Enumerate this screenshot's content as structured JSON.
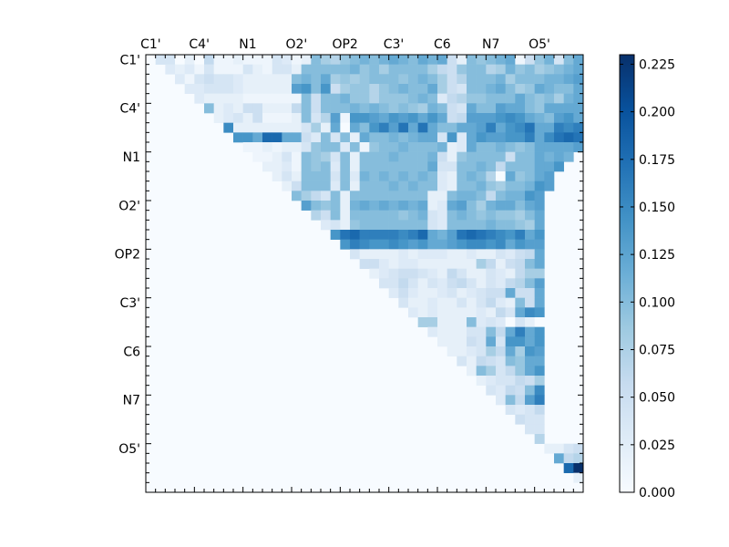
{
  "chart_data": {
    "type": "heatmap",
    "title": "",
    "xlabel": "",
    "ylabel": "",
    "x_tick_labels": [
      "C1'",
      "C4'",
      "N1",
      "O2'",
      "OP2",
      "C3'",
      "C6",
      "N7",
      "O5'"
    ],
    "y_tick_labels": [
      "C1'",
      "C4'",
      "N1",
      "O2'",
      "OP2",
      "C3'",
      "C6",
      "N7",
      "O5'"
    ],
    "grid_size": 45,
    "label_every": 5,
    "upper_triangular": true,
    "colormap": "Blues",
    "colorbar": {
      "range": [
        0.0,
        0.23
      ],
      "tick_labels": [
        "0.000",
        "0.025",
        "0.050",
        "0.075",
        "0.100",
        "0.125",
        "0.150",
        "0.175",
        "0.200",
        "0.225"
      ]
    },
    "colors": {
      "low": "#f7fbff",
      "high": "#08306b"
    },
    "rows": [
      {
        "row": 1,
        "values": [
          0.04,
          0.04,
          0.0,
          0.02,
          0.0,
          0.06,
          0.01,
          0.01,
          0.02,
          0.01,
          0.01,
          0.01,
          0.04,
          0.03,
          0.01,
          0.02,
          0.1,
          0.08,
          0.07,
          0.09,
          0.1,
          0.11,
          0.1,
          0.11,
          0.12,
          0.11,
          0.1,
          0.12,
          0.11,
          0.12,
          0.05,
          0.02,
          0.1,
          0.09,
          0.1,
          0.11,
          0.12,
          0.01,
          0.05,
          0.09,
          0.11,
          0.04,
          0.1,
          0.12,
          0.12
        ]
      },
      {
        "row": 2,
        "values": [
          0.03,
          0.02,
          0.03,
          0.01,
          0.04,
          0.01,
          0.01,
          0.01,
          0.04,
          0.02,
          0.01,
          0.04,
          0.04,
          0.02,
          0.1,
          0.1,
          0.1,
          0.1,
          0.1,
          0.11,
          0.09,
          0.1,
          0.08,
          0.1,
          0.1,
          0.1,
          0.1,
          0.08,
          0.06,
          0.05,
          0.09,
          0.1,
          0.1,
          0.07,
          0.08,
          0.11,
          0.09,
          0.1,
          0.08,
          0.09,
          0.1,
          0.11,
          0.12
        ]
      },
      {
        "row": 3,
        "values": [
          0.03,
          0.01,
          0.04,
          0.05,
          0.04,
          0.04,
          0.03,
          0.02,
          0.02,
          0.02,
          0.02,
          0.02,
          0.1,
          0.11,
          0.1,
          0.12,
          0.08,
          0.09,
          0.08,
          0.09,
          0.1,
          0.1,
          0.1,
          0.09,
          0.1,
          0.11,
          0.1,
          0.08,
          0.05,
          0.07,
          0.1,
          0.1,
          0.1,
          0.11,
          0.08,
          0.1,
          0.1,
          0.1,
          0.11,
          0.11,
          0.12,
          0.13
        ]
      },
      {
        "row": 4,
        "values": [
          0.03,
          0.03,
          0.04,
          0.04,
          0.04,
          0.03,
          0.02,
          0.02,
          0.02,
          0.02,
          0.02,
          0.13,
          0.14,
          0.1,
          0.14,
          0.05,
          0.08,
          0.09,
          0.09,
          0.07,
          0.09,
          0.1,
          0.11,
          0.1,
          0.1,
          0.12,
          0.08,
          0.05,
          0.04,
          0.1,
          0.1,
          0.11,
          0.12,
          0.1,
          0.08,
          0.09,
          0.12,
          0.11,
          0.1,
          0.1,
          0.12
        ]
      },
      {
        "row": 5,
        "values": [
          0.03,
          0.02,
          0.02,
          0.02,
          0.02,
          0.01,
          0.01,
          0.01,
          0.01,
          0.01,
          0.01,
          0.1,
          0.05,
          0.1,
          0.1,
          0.11,
          0.09,
          0.09,
          0.07,
          0.09,
          0.09,
          0.09,
          0.1,
          0.11,
          0.1,
          0.03,
          0.06,
          0.07,
          0.09,
          0.09,
          0.1,
          0.1,
          0.1,
          0.12,
          0.1,
          0.09,
          0.1,
          0.08,
          0.11,
          0.12
        ]
      },
      {
        "row": 6,
        "values": [
          0.1,
          0.02,
          0.03,
          0.02,
          0.05,
          0.05,
          0.02,
          0.02,
          0.02,
          0.06,
          0.1,
          0.05,
          0.1,
          0.1,
          0.1,
          0.11,
          0.1,
          0.11,
          0.1,
          0.09,
          0.1,
          0.09,
          0.08,
          0.11,
          0.1,
          0.05,
          0.04,
          0.12,
          0.1,
          0.1,
          0.13,
          0.12,
          0.12,
          0.1,
          0.09,
          0.12,
          0.12,
          0.12,
          0.12
        ]
      },
      {
        "row": 7,
        "values": [
          0.02,
          0.03,
          0.04,
          0.02,
          0.05,
          0.01,
          0.01,
          0.01,
          0.02,
          0.1,
          0.04,
          0.07,
          0.13,
          0.01,
          0.14,
          0.14,
          0.13,
          0.12,
          0.14,
          0.13,
          0.14,
          0.12,
          0.14,
          0.12,
          0.05,
          0.06,
          0.13,
          0.13,
          0.13,
          0.14,
          0.15,
          0.14,
          0.12,
          0.11,
          0.1,
          0.13,
          0.14,
          0.12
        ]
      },
      {
        "row": 8,
        "values": [
          0.15,
          0.02,
          0.02,
          0.02,
          0.02,
          0.02,
          0.02,
          0.02,
          0.04,
          0.08,
          0.02,
          0.12,
          0.0,
          0.12,
          0.1,
          0.14,
          0.16,
          0.13,
          0.17,
          0.12,
          0.17,
          0.12,
          0.1,
          0.1,
          0.12,
          0.12,
          0.13,
          0.16,
          0.12,
          0.14,
          0.15,
          0.17,
          0.12,
          0.12,
          0.16,
          0.15,
          0.16
        ]
      },
      {
        "row": 9,
        "values": [
          0.14,
          0.14,
          0.12,
          0.18,
          0.18,
          0.12,
          0.12,
          0.05,
          0.03,
          0.1,
          0.04,
          0.1,
          0.02,
          0.12,
          0.1,
          0.1,
          0.11,
          0.1,
          0.11,
          0.12,
          0.12,
          0.04,
          0.14,
          0.03,
          0.12,
          0.14,
          0.13,
          0.13,
          0.14,
          0.14,
          0.16,
          0.12,
          0.15,
          0.17,
          0.18,
          0.17
        ]
      },
      {
        "row": 10,
        "values": [
          0.01,
          0.01,
          0.02,
          0.01,
          0.02,
          0.02,
          0.04,
          0.09,
          0.1,
          0.1,
          0.03,
          0.1,
          0.01,
          0.09,
          0.1,
          0.1,
          0.11,
          0.1,
          0.1,
          0.1,
          0.11,
          0.02,
          0.03,
          0.12,
          0.1,
          0.1,
          0.11,
          0.1,
          0.09,
          0.1,
          0.12,
          0.12,
          0.12,
          0.12,
          0.13
        ]
      },
      {
        "row": 11,
        "values": [
          0.01,
          0.01,
          0.02,
          0.04,
          0.01,
          0.1,
          0.09,
          0.08,
          0.04,
          0.1,
          0.02,
          0.1,
          0.1,
          0.1,
          0.11,
          0.1,
          0.1,
          0.1,
          0.11,
          0.05,
          0.02,
          0.09,
          0.1,
          0.1,
          0.1,
          0.1,
          0.05,
          0.1,
          0.1,
          0.12,
          0.11,
          0.12,
          0.11
        ]
      },
      {
        "row": 12,
        "values": [
          0.02,
          0.02,
          0.03,
          0.01,
          0.1,
          0.09,
          0.1,
          0.03,
          0.1,
          0.02,
          0.1,
          0.1,
          0.1,
          0.1,
          0.1,
          0.1,
          0.1,
          0.12,
          0.04,
          0.04,
          0.1,
          0.1,
          0.11,
          0.1,
          0.06,
          0.1,
          0.1,
          0.1,
          0.12,
          0.12,
          0.14
        ]
      },
      {
        "row": 13,
        "values": [
          0.02,
          0.04,
          0.02,
          0.1,
          0.1,
          0.1,
          0.04,
          0.1,
          0.03,
          0.11,
          0.1,
          0.11,
          0.1,
          0.11,
          0.1,
          0.11,
          0.1,
          0.03,
          0.02,
          0.1,
          0.11,
          0.1,
          0.07,
          0.0,
          0.12,
          0.09,
          0.1,
          0.12,
          0.13
        ]
      },
      {
        "row": 14,
        "values": [
          0.02,
          0.05,
          0.1,
          0.1,
          0.1,
          0.03,
          0.1,
          0.02,
          0.1,
          0.1,
          0.1,
          0.11,
          0.1,
          0.11,
          0.1,
          0.1,
          0.03,
          0.02,
          0.1,
          0.1,
          0.11,
          0.09,
          0.08,
          0.1,
          0.1,
          0.11,
          0.14,
          0.13
        ]
      },
      {
        "row": 15,
        "values": [
          0.1,
          0.08,
          0.06,
          0.04,
          0.1,
          0.02,
          0.1,
          0.1,
          0.1,
          0.1,
          0.1,
          0.1,
          0.1,
          0.1,
          0.02,
          0.02,
          0.1,
          0.11,
          0.11,
          0.1,
          0.06,
          0.1,
          0.11,
          0.11,
          0.14,
          0.13
        ]
      },
      {
        "row": 16,
        "values": [
          0.13,
          0.1,
          0.09,
          0.1,
          0.02,
          0.11,
          0.12,
          0.11,
          0.12,
          0.11,
          0.12,
          0.11,
          0.12,
          0.02,
          0.03,
          0.12,
          0.13,
          0.1,
          0.08,
          0.11,
          0.12,
          0.12,
          0.1,
          0.12,
          0.13
        ]
      },
      {
        "row": 17,
        "values": [
          0.07,
          0.05,
          0.1,
          0.02,
          0.1,
          0.1,
          0.1,
          0.1,
          0.1,
          0.09,
          0.1,
          0.11,
          0.04,
          0.03,
          0.1,
          0.11,
          0.1,
          0.09,
          0.1,
          0.09,
          0.09,
          0.08,
          0.1,
          0.12
        ]
      },
      {
        "row": 18,
        "values": [
          0.03,
          0.04,
          0.02,
          0.09,
          0.1,
          0.1,
          0.1,
          0.1,
          0.1,
          0.1,
          0.1,
          0.04,
          0.03,
          0.1,
          0.1,
          0.1,
          0.1,
          0.11,
          0.1,
          0.1,
          0.09,
          0.08,
          0.12
        ]
      },
      {
        "row": 19,
        "values": [
          0.14,
          0.17,
          0.18,
          0.16,
          0.16,
          0.16,
          0.16,
          0.15,
          0.16,
          0.18,
          0.12,
          0.11,
          0.13,
          0.17,
          0.18,
          0.17,
          0.16,
          0.15,
          0.14,
          0.16,
          0.12,
          0.14
        ]
      },
      {
        "row": 20,
        "values": [
          0.14,
          0.16,
          0.15,
          0.14,
          0.14,
          0.15,
          0.14,
          0.13,
          0.14,
          0.12,
          0.12,
          0.13,
          0.14,
          0.15,
          0.15,
          0.14,
          0.15,
          0.12,
          0.14,
          0.13,
          0.13
        ]
      },
      {
        "row": 21,
        "values": [
          0.04,
          0.02,
          0.02,
          0.02,
          0.02,
          0.03,
          0.02,
          0.03,
          0.03,
          0.03,
          0.02,
          0.02,
          0.03,
          0.02,
          0.02,
          0.04,
          0.03,
          0.05,
          0.06,
          0.12
        ]
      },
      {
        "row": 22,
        "values": [
          0.05,
          0.05,
          0.03,
          0.02,
          0.03,
          0.03,
          0.02,
          0.02,
          0.02,
          0.02,
          0.02,
          0.02,
          0.08,
          0.06,
          0.02,
          0.05,
          0.06,
          0.1,
          0.12
        ]
      },
      {
        "row": 23,
        "values": [
          0.02,
          0.03,
          0.04,
          0.05,
          0.05,
          0.04,
          0.03,
          0.02,
          0.06,
          0.04,
          0.02,
          0.02,
          0.04,
          0.03,
          0.02,
          0.06,
          0.08,
          0.08
        ]
      },
      {
        "row": 24,
        "values": [
          0.04,
          0.04,
          0.06,
          0.04,
          0.02,
          0.04,
          0.03,
          0.05,
          0.06,
          0.04,
          0.02,
          0.04,
          0.03,
          0.06,
          0.07,
          0.1,
          0.13
        ]
      },
      {
        "row": 25,
        "values": [
          0.03,
          0.05,
          0.03,
          0.02,
          0.02,
          0.03,
          0.04,
          0.02,
          0.03,
          0.04,
          0.05,
          0.05,
          0.12,
          0.05,
          0.05,
          0.12
        ]
      },
      {
        "row": 26,
        "values": [
          0.04,
          0.02,
          0.02,
          0.03,
          0.02,
          0.02,
          0.04,
          0.02,
          0.04,
          0.06,
          0.03,
          0.02,
          0.1,
          0.05,
          0.12
        ]
      },
      {
        "row": 27,
        "values": [
          0.03,
          0.02,
          0.03,
          0.02,
          0.02,
          0.02,
          0.02,
          0.03,
          0.02,
          0.06,
          0.04,
          0.12,
          0.15,
          0.14
        ]
      },
      {
        "row": 28,
        "values": [
          0.08,
          0.08,
          0.02,
          0.02,
          0.02,
          0.1,
          0.03,
          0.04,
          0.03,
          0.0,
          0.04,
          0.02,
          0.0
        ]
      },
      {
        "row": 29,
        "values": [
          0.03,
          0.02,
          0.02,
          0.02,
          0.04,
          0.04,
          0.1,
          0.06,
          0.12,
          0.16,
          0.12,
          0.14
        ]
      },
      {
        "row": 30,
        "values": [
          0.02,
          0.02,
          0.02,
          0.05,
          0.04,
          0.12,
          0.04,
          0.14,
          0.14,
          0.12,
          0.14
        ]
      },
      {
        "row": 31,
        "values": [
          0.02,
          0.02,
          0.03,
          0.04,
          0.08,
          0.06,
          0.12,
          0.08,
          0.14,
          0.13
        ]
      },
      {
        "row": 32,
        "values": [
          0.04,
          0.02,
          0.06,
          0.05,
          0.04,
          0.1,
          0.09,
          0.12,
          0.12
        ]
      },
      {
        "row": 33,
        "values": [
          0.02,
          0.1,
          0.08,
          0.04,
          0.06,
          0.09,
          0.12,
          0.14
        ]
      },
      {
        "row": 34,
        "values": [
          0.02,
          0.03,
          0.04,
          0.04,
          0.06,
          0.05,
          0.08
        ]
      },
      {
        "row": 35,
        "values": [
          0.04,
          0.03,
          0.06,
          0.05,
          0.1,
          0.15
        ]
      },
      {
        "row": 36,
        "values": [
          0.03,
          0.1,
          0.06,
          0.13,
          0.16
        ]
      },
      {
        "row": 37,
        "values": [
          0.04,
          0.03,
          0.04,
          0.06
        ]
      },
      {
        "row": 38,
        "values": [
          0.05,
          0.04,
          0.04
        ]
      },
      {
        "row": 39,
        "values": [
          0.04,
          0.04
        ]
      },
      {
        "row": 40,
        "values": [
          0.07
        ]
      },
      {
        "row": 41,
        "values": [
          0.02,
          0.02,
          0.04,
          0.05
        ]
      },
      {
        "row": 42,
        "values": [
          0.12,
          0.06,
          0.07
        ]
      },
      {
        "row": 43,
        "values": [
          0.18,
          0.23,
          0.16
        ]
      },
      {
        "row": 44,
        "values": [
          0.02
        ]
      },
      {
        "row": 45,
        "values": []
      }
    ]
  }
}
